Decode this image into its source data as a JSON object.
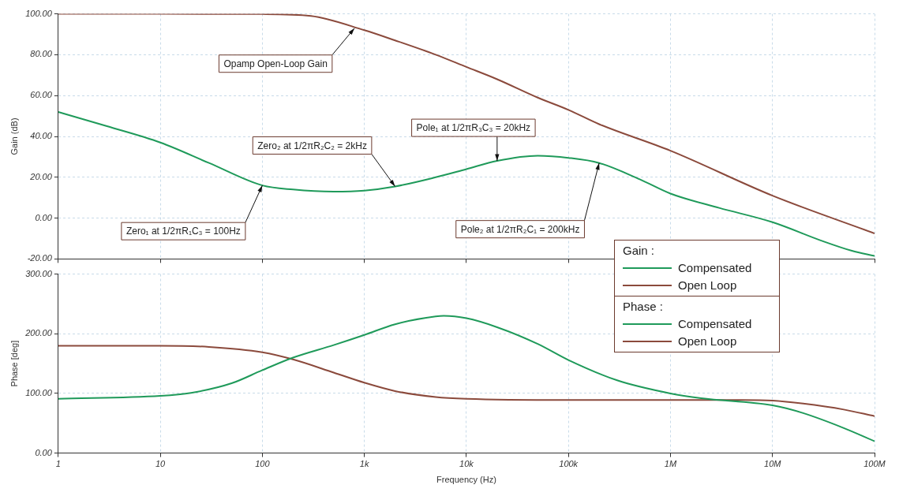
{
  "chart_data": [
    {
      "type": "line",
      "ylabel": "Gain (dB)",
      "log": "x",
      "grid": true,
      "legend": "bottom right",
      "legend_title": "Gain :",
      "tick_labels": "y",
      "xlim": [
        1,
        100000000
      ],
      "ylim": [
        -20,
        100
      ],
      "xticks": [
        {
          "value": 1,
          "label": null
        },
        {
          "value": 10,
          "label": null
        },
        {
          "value": 100,
          "label": null
        },
        {
          "value": 1000,
          "label": null
        },
        {
          "value": 10000,
          "label": null
        },
        {
          "value": 100000,
          "label": null
        },
        {
          "value": 1000000,
          "label": null
        },
        {
          "value": 10000000,
          "label": null
        },
        {
          "value": 100000000,
          "label": null
        }
      ],
      "yticks": [
        {
          "value": -20,
          "label": "-20.00"
        },
        {
          "value": 0,
          "label": "0.00"
        },
        {
          "value": 20,
          "label": "20.00"
        },
        {
          "value": 40,
          "label": "40.00"
        },
        {
          "value": 60,
          "label": "60.00"
        },
        {
          "value": 80,
          "label": "80.00"
        },
        {
          "value": 100,
          "label": "100.00"
        }
      ],
      "series": [
        {
          "name": "Compensated",
          "color": "#1f9a5a",
          "x": [
            1,
            3,
            10,
            30,
            100,
            200,
            500,
            1000,
            2000,
            5000,
            10000,
            20000,
            50000,
            100000,
            200000,
            500000,
            1000000,
            3000000,
            10000000,
            30000000,
            60000000,
            100000000
          ],
          "values": [
            52,
            45,
            37,
            27,
            16,
            14,
            13,
            13.5,
            15.5,
            20,
            24,
            28,
            30.5,
            29.5,
            27,
            19,
            12,
            5,
            -2,
            -11,
            -16,
            -18.5
          ]
        },
        {
          "name": "Open Loop",
          "color": "#8b4a3c",
          "x": [
            1,
            10,
            100,
            300,
            1000,
            2000,
            5000,
            10000,
            20000,
            50000,
            100000,
            200000,
            1000000,
            10000000,
            100000000
          ],
          "values": [
            100,
            100,
            99.9,
            99,
            92,
            87,
            80,
            74,
            68,
            59,
            53,
            46,
            33,
            11,
            -7.5
          ]
        }
      ],
      "annotations": [
        {
          "text": "Opamp Open-Loop Gain",
          "x": 800,
          "y": 93
        },
        {
          "text": "Zero₁ at 1/2πR₁C₃ = 100Hz",
          "x": 100,
          "y": 16
        },
        {
          "text": "Zero₂ at 1/2πR₂C₂ = 2kHz",
          "x": 2000,
          "y": 15.5
        },
        {
          "text": "Pole₁ at 1/2πR₃C₃ = 20kHz",
          "x": 20000,
          "y": 28
        },
        {
          "text": "Pole₂ at 1/2πR₂C₁ = 200kHz",
          "x": 200000,
          "y": 27
        }
      ]
    },
    {
      "type": "line",
      "xlabel": "Frequency (Hz)",
      "ylabel": "Phase [deg]",
      "log": "x",
      "grid": true,
      "legend": "top right",
      "legend_title": "Phase :",
      "xlim": [
        1,
        100000000
      ],
      "ylim": [
        0,
        300
      ],
      "xticks": [
        {
          "value": 1,
          "label": "1"
        },
        {
          "value": 10,
          "label": "10"
        },
        {
          "value": 100,
          "label": "100"
        },
        {
          "value": 1000,
          "label": "1k"
        },
        {
          "value": 10000,
          "label": "10k"
        },
        {
          "value": 100000,
          "label": "100k"
        },
        {
          "value": 1000000,
          "label": "1M"
        },
        {
          "value": 10000000,
          "label": "10M"
        },
        {
          "value": 100000000,
          "label": "100M"
        }
      ],
      "yticks": [
        {
          "value": 0,
          "label": "0.00"
        },
        {
          "value": 100,
          "label": "100.00"
        },
        {
          "value": 200,
          "label": "200.00"
        },
        {
          "value": 300,
          "label": "300.00"
        }
      ],
      "series": [
        {
          "name": "Compensated",
          "color": "#1f9a5a",
          "x": [
            1,
            10,
            20,
            50,
            100,
            200,
            500,
            1000,
            2000,
            5000,
            6000,
            10000,
            20000,
            50000,
            100000,
            300000,
            1000000,
            2000000,
            10000000,
            20000000,
            50000000,
            100000000
          ],
          "values": [
            91,
            96,
            101,
            117,
            139,
            160,
            181,
            198,
            216,
            229,
            230,
            226,
            211,
            183,
            156,
            122,
            100,
            92,
            80,
            67,
            42,
            20
          ]
        },
        {
          "name": "Open Loop",
          "color": "#8b4a3c",
          "x": [
            1,
            10,
            30,
            100,
            200,
            500,
            1000,
            2000,
            5000,
            10000,
            100000,
            1000000,
            5000000,
            10000000,
            20000000,
            50000000,
            100000000
          ],
          "values": [
            180,
            180,
            178,
            169,
            157,
            135,
            118,
            104,
            94,
            91,
            89,
            89,
            89,
            88,
            83,
            73,
            62
          ]
        }
      ]
    }
  ]
}
